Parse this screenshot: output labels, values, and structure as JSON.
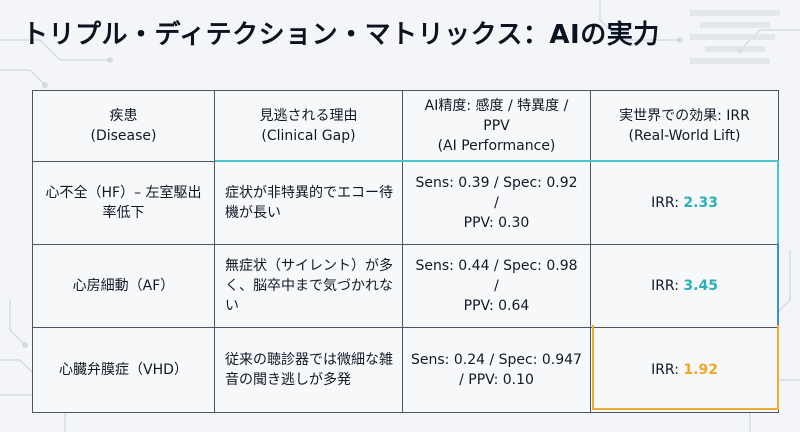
{
  "title": "トリプル・ディテクション・マトリックス：AIの実力",
  "headers": {
    "disease_jp": "疾患",
    "disease_en": "(Disease)",
    "gap_jp": "見逃される理由",
    "gap_en": "(Clinical Gap)",
    "ai_jp": "AI精度: 感度 / 特異度 / PPV",
    "ai_en": "(AI Performance)",
    "irr_jp": "実世界での効果: IRR",
    "irr_en": "(Real-World Lift)"
  },
  "rows": [
    {
      "disease": "心不全（HF）– 左室駆出率低下",
      "reason": "症状が非特異的でエコー待機が長い",
      "ai_line1": "Sens: 0.39 / Spec: 0.92 /",
      "ai_line2": "PPV: 0.30",
      "irr_label": "IRR: ",
      "irr_value": "2.33"
    },
    {
      "disease": "心房細動（AF）",
      "reason": "無症状（サイレント）が多く、脳卒中まで気づかれない",
      "ai_line1": "Sens: 0.44 / Spec: 0.98 /",
      "ai_line2": "PPV: 0.64",
      "irr_label": "IRR: ",
      "irr_value": "3.45"
    },
    {
      "disease": "心臓弁膜症（VHD）",
      "reason": "従来の聴診器では微細な雑音の聞き逃しが多発",
      "ai_line1": "Sens: 0.24 / Spec: 0.947",
      "ai_line2": "/ PPV: 0.10",
      "irr_label": "IRR: ",
      "irr_value": "1.92"
    }
  ],
  "colors": {
    "accent_teal": "#2ab0b8",
    "accent_orange": "#f0a728",
    "border": "#4b5563"
  }
}
